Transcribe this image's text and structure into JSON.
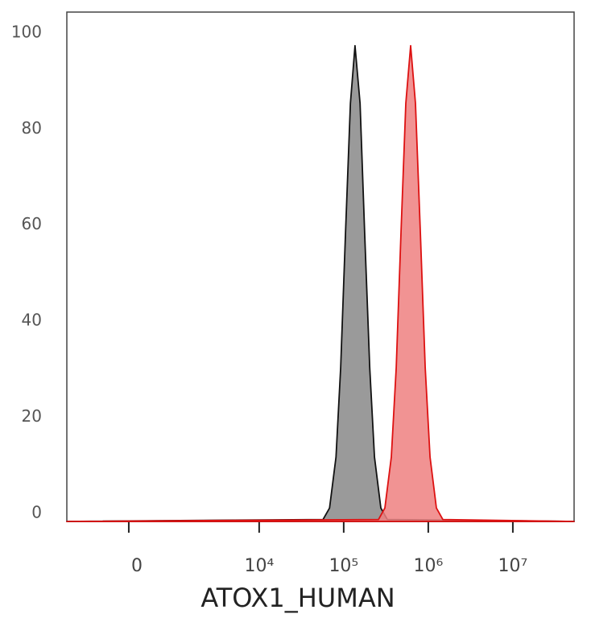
{
  "chart_data": {
    "type": "histogram-overlay",
    "x_label": "ATOX1_HUMAN",
    "x_scale": "biexponential",
    "xlim": [
      -1500,
      53000000
    ],
    "xticks": [
      {
        "value": 0,
        "label": "0"
      },
      {
        "value": 10000,
        "label": "10⁴"
      },
      {
        "value": 100000,
        "label": "10⁵"
      },
      {
        "value": 1000000,
        "label": "10⁶"
      },
      {
        "value": 10000000,
        "label": "10⁷"
      }
    ],
    "ylim": [
      0,
      106
    ],
    "yticks": [
      0,
      20,
      40,
      60,
      80,
      100
    ],
    "grid": false,
    "series": [
      {
        "color": "#888888",
        "stroke": "#111111",
        "x": [
          -1500,
          57000,
          68000,
          81000,
          92000,
          105000,
          120000,
          136000,
          156000,
          177000,
          203000,
          231000,
          275000,
          328000,
          53000000
        ],
        "values": [
          0,
          0.4,
          2.8,
          13.4,
          32,
          60,
          87,
          99,
          87,
          60,
          32,
          13.4,
          2.8,
          0.4,
          0
        ]
      },
      {
        "color": "#ee8080",
        "stroke": "#dd1111",
        "x": [
          -1500,
          258000,
          307000,
          366000,
          418000,
          476000,
          543000,
          619000,
          706000,
          806000,
          920000,
          1049000,
          1249000,
          1488000,
          53000000
        ],
        "values": [
          0,
          0.4,
          2.8,
          13.4,
          32,
          60,
          87,
          99,
          87,
          60,
          32,
          13.4,
          2.8,
          0.4,
          0
        ]
      }
    ]
  }
}
